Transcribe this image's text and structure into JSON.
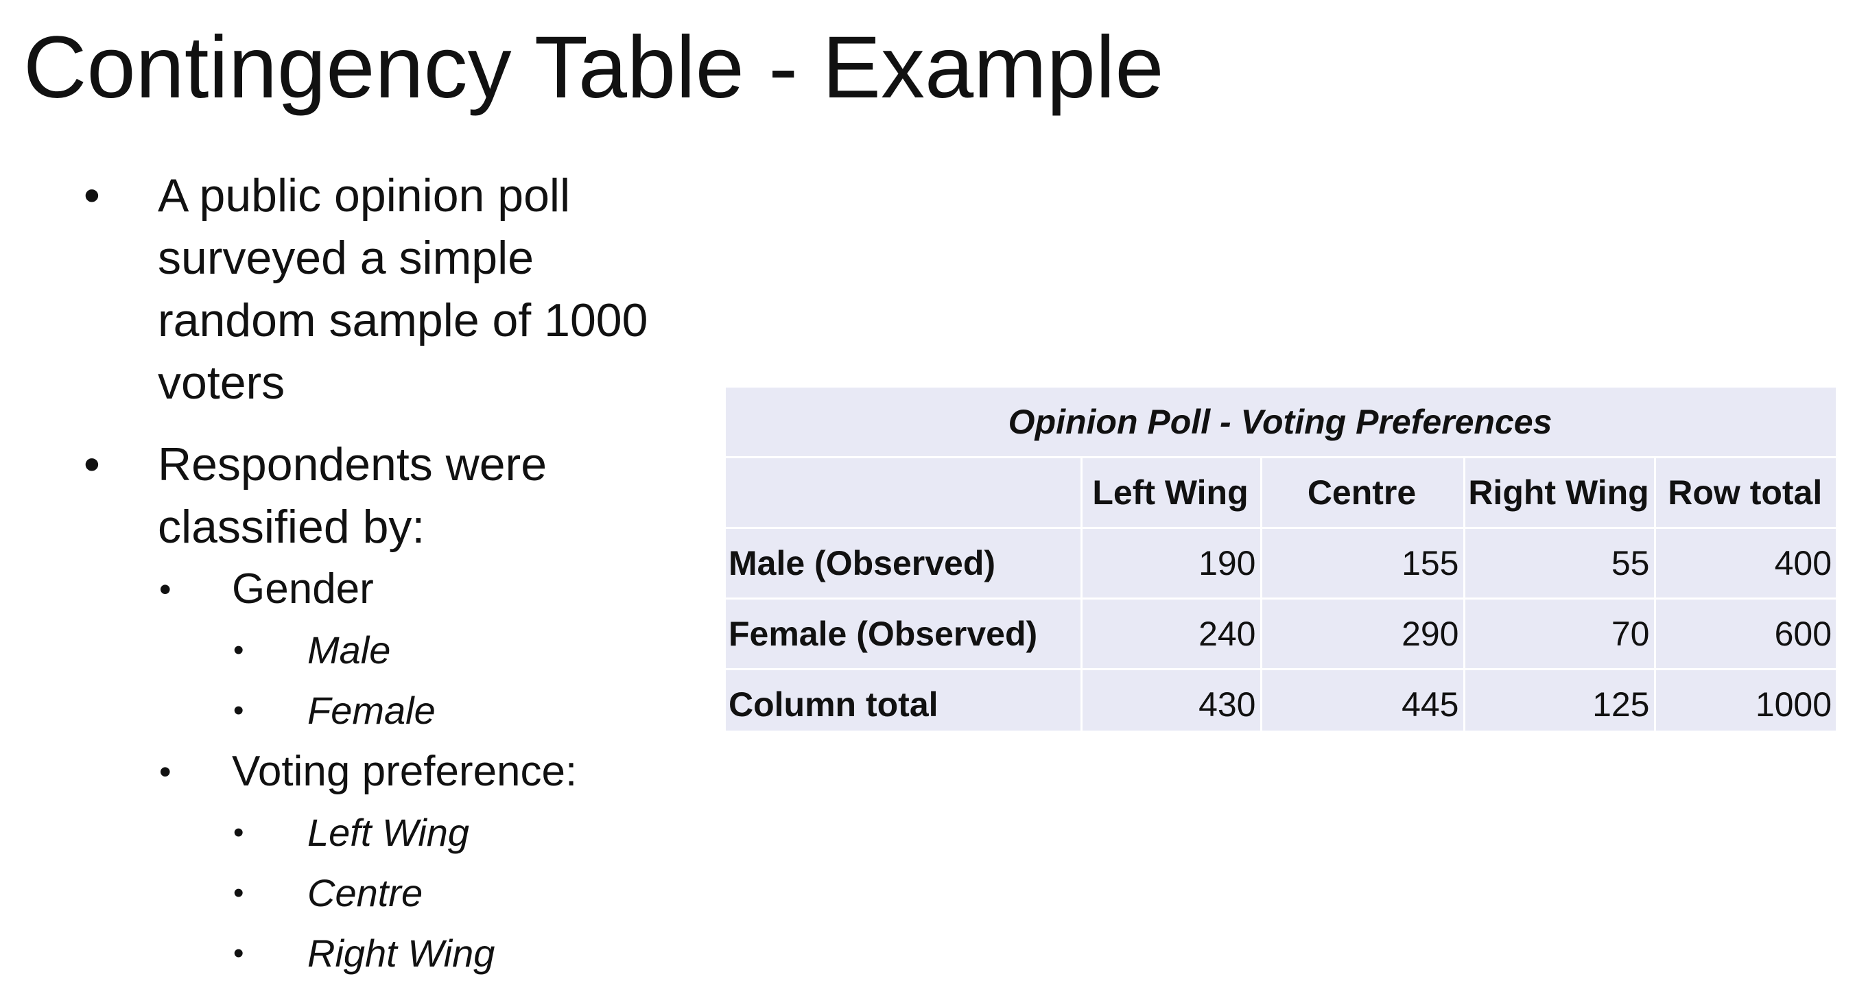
{
  "slide": {
    "title": "Contingency Table - Example"
  },
  "bullets": {
    "b1_lines": [
      "A public opinion poll",
      "surveyed a simple",
      "random sample of 1000",
      "voters"
    ],
    "b2_lines": [
      "Respondents were",
      "classified by:"
    ],
    "gender": {
      "label": "Gender",
      "options": [
        "Male",
        "Female"
      ]
    },
    "voting": {
      "label": "Voting preference:",
      "options": [
        "Left Wing",
        "Centre",
        "Right Wing"
      ]
    },
    "bullet_char": "•"
  },
  "table": {
    "caption": "Opinion Poll - Voting Preferences",
    "columns": [
      "",
      "Left Wing",
      "Centre",
      "Right Wing",
      "Row total"
    ],
    "rows": [
      {
        "label": "Male (Observed)",
        "values": [
          "190",
          "155",
          "55",
          "400"
        ]
      },
      {
        "label": "Female (Observed)",
        "values": [
          "240",
          "290",
          "70",
          "600"
        ]
      },
      {
        "label": "Column total",
        "values": [
          "430",
          "445",
          "125",
          "1000"
        ]
      }
    ],
    "colors": {
      "background": "#e8e9f5",
      "grid": "#ffffff"
    }
  }
}
